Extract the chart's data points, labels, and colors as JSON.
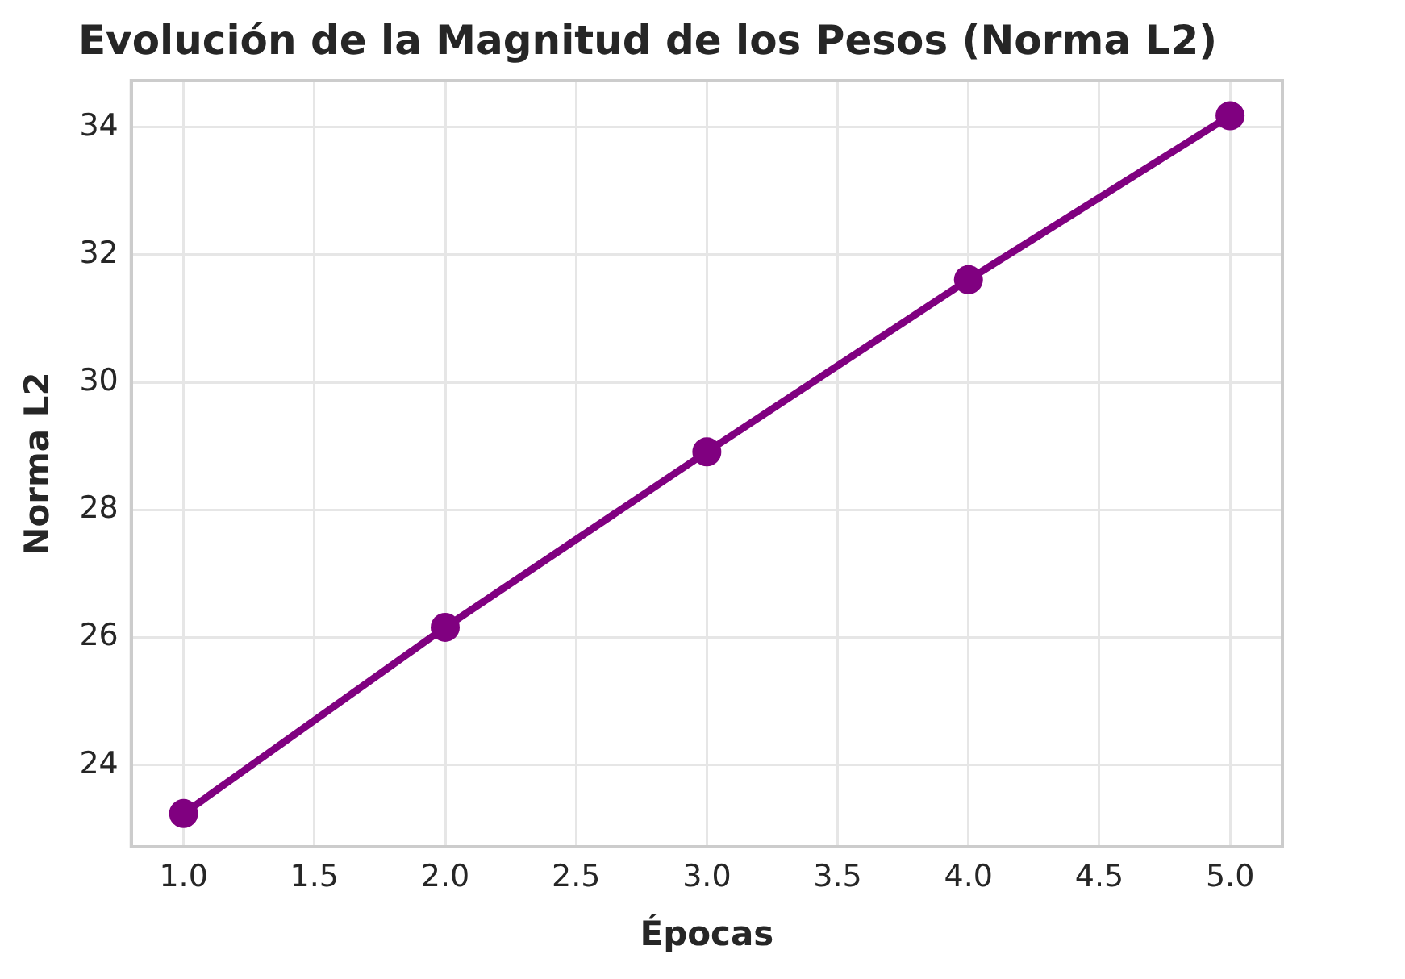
{
  "chart_data": {
    "type": "line",
    "title": "Evolución de la Magnitud de los Pesos (Norma L2)",
    "xlabel": "Épocas",
    "ylabel": "Norma L2",
    "x": [
      1,
      2,
      3,
      4,
      5
    ],
    "series": [
      {
        "color": "#800080",
        "values": [
          23.24,
          26.16,
          28.91,
          31.61,
          34.18
        ]
      }
    ],
    "xlim": [
      0.8,
      5.2
    ],
    "ylim": [
      22.72,
      34.73
    ],
    "xticks": [
      {
        "value": 1,
        "label": "1.0"
      },
      {
        "value": 1.5,
        "label": "1.5"
      },
      {
        "value": 2,
        "label": "2.0"
      },
      {
        "value": 2.5,
        "label": "2.5"
      },
      {
        "value": 3,
        "label": "3.0"
      },
      {
        "value": 3.5,
        "label": "3.5"
      },
      {
        "value": 4,
        "label": "4.0"
      },
      {
        "value": 4.5,
        "label": "4.5"
      },
      {
        "value": 5,
        "label": "5.0"
      }
    ],
    "yticks": [
      24,
      26,
      28,
      30,
      32,
      34
    ],
    "grid": true,
    "legend": false,
    "marker": "circle",
    "line_style": "solid"
  }
}
